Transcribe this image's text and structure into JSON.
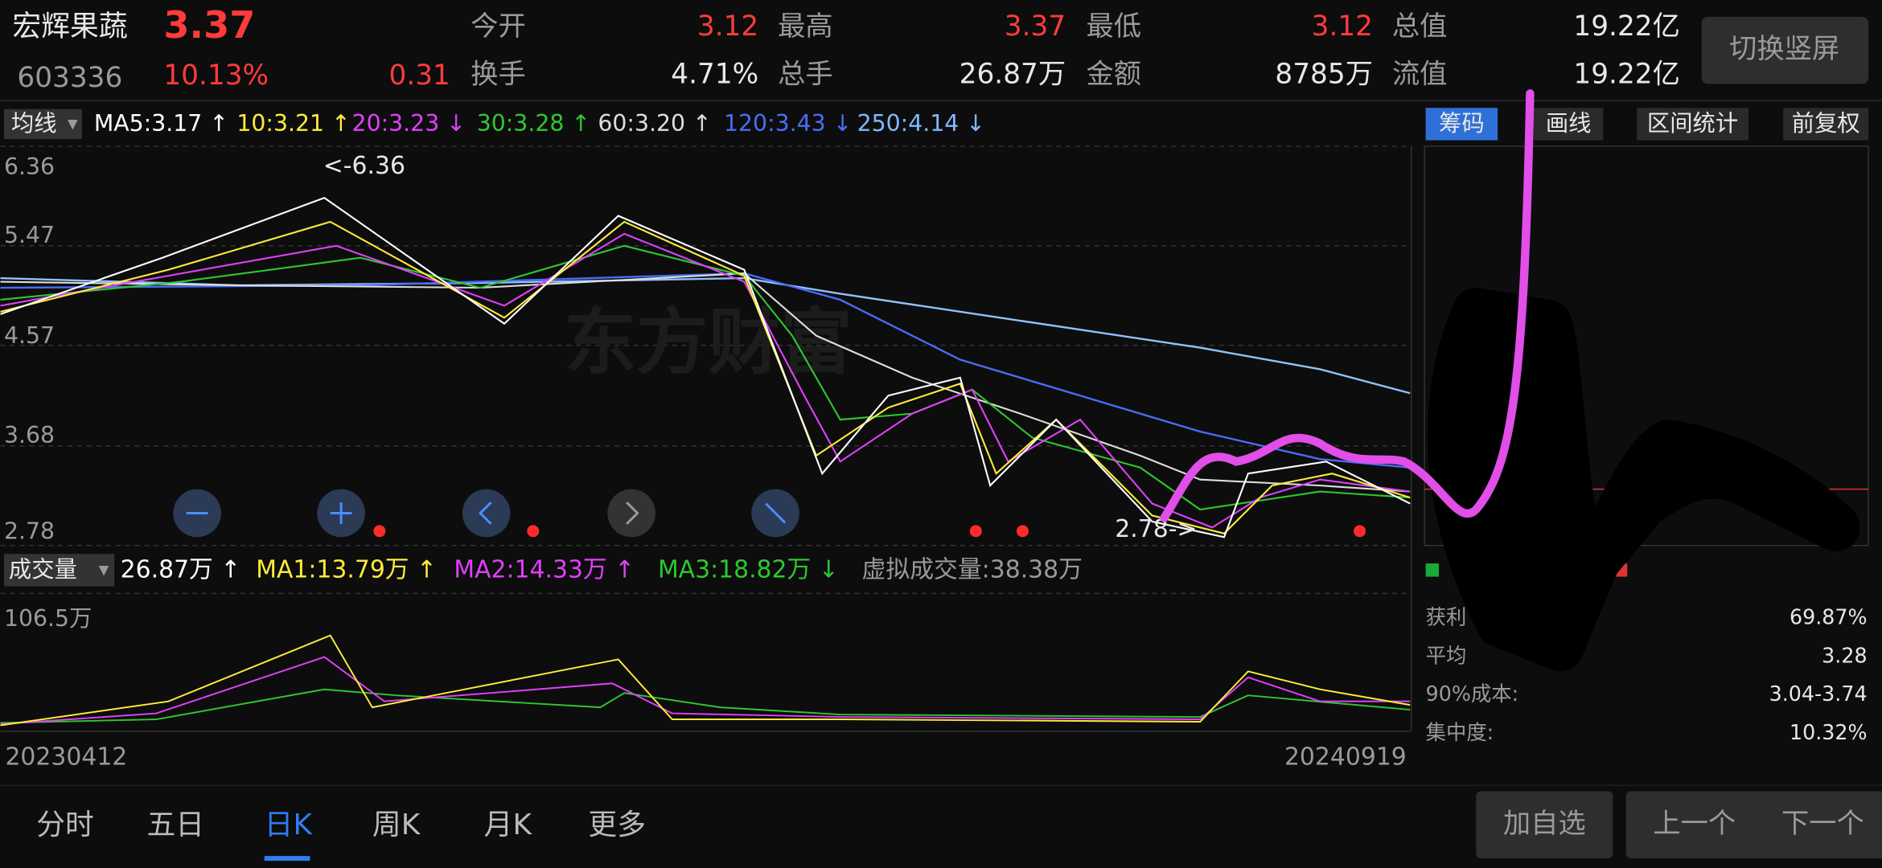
{
  "header": {
    "name": "宏辉果蔬",
    "price": "3.37",
    "code": "603336",
    "change_pct": "10.13%",
    "change": "0.31",
    "stats": [
      {
        "label": "今开",
        "value": "3.12"
      },
      {
        "label": "最高",
        "value": "3.37"
      },
      {
        "label": "最低",
        "value": "3.12"
      },
      {
        "label": "总值",
        "value": "19.22亿"
      },
      {
        "label": "换手",
        "value": "4.71%"
      },
      {
        "label": "总手",
        "value": "26.87万"
      },
      {
        "label": "金额",
        "value": "8785万"
      },
      {
        "label": "流值",
        "value": "19.22亿"
      }
    ],
    "button": "切换竖屏"
  },
  "ma_bar": {
    "selector": "均线",
    "items": [
      "MA5:3.17 ↑",
      "10:3.21 ↑",
      "20:3.23 ↓",
      "30:3.28 ↑",
      "60:3.20 ↑",
      "120:3.43 ↓",
      "250:4.14 ↓"
    ]
  },
  "price_axis": [
    "6.36",
    "5.47",
    "4.57",
    "3.68",
    "2.78"
  ],
  "annotations": {
    "high": "<-6.36",
    "low": "2.78->"
  },
  "watermark": "东方财富",
  "side_tabs": [
    "筹码",
    "画线",
    "区间统计",
    "前复权"
  ],
  "volume_bar": {
    "selector": "成交量",
    "items": [
      "26.87万 ↑",
      "MA1:13.79万 ↑",
      "MA2:14.33万 ↑",
      "MA3:18.82万 ↓",
      "虚拟成交量:38.38万"
    ]
  },
  "volume_axis": "106.5万",
  "dates": [
    "20230412",
    "20240919"
  ],
  "chips": [
    {
      "label": "获利",
      "value": "69.87%"
    },
    {
      "label": "平均",
      "value": "3.28"
    },
    {
      "label": "90%成本:",
      "value": "3.04-3.74"
    },
    {
      "label": "集中度:",
      "value": "10.32%"
    }
  ],
  "bottom_tabs": [
    "分时",
    "五日",
    "日K",
    "周K",
    "月K",
    "更多"
  ],
  "buttons": [
    "加自选",
    "上一个",
    "下一个"
  ]
}
